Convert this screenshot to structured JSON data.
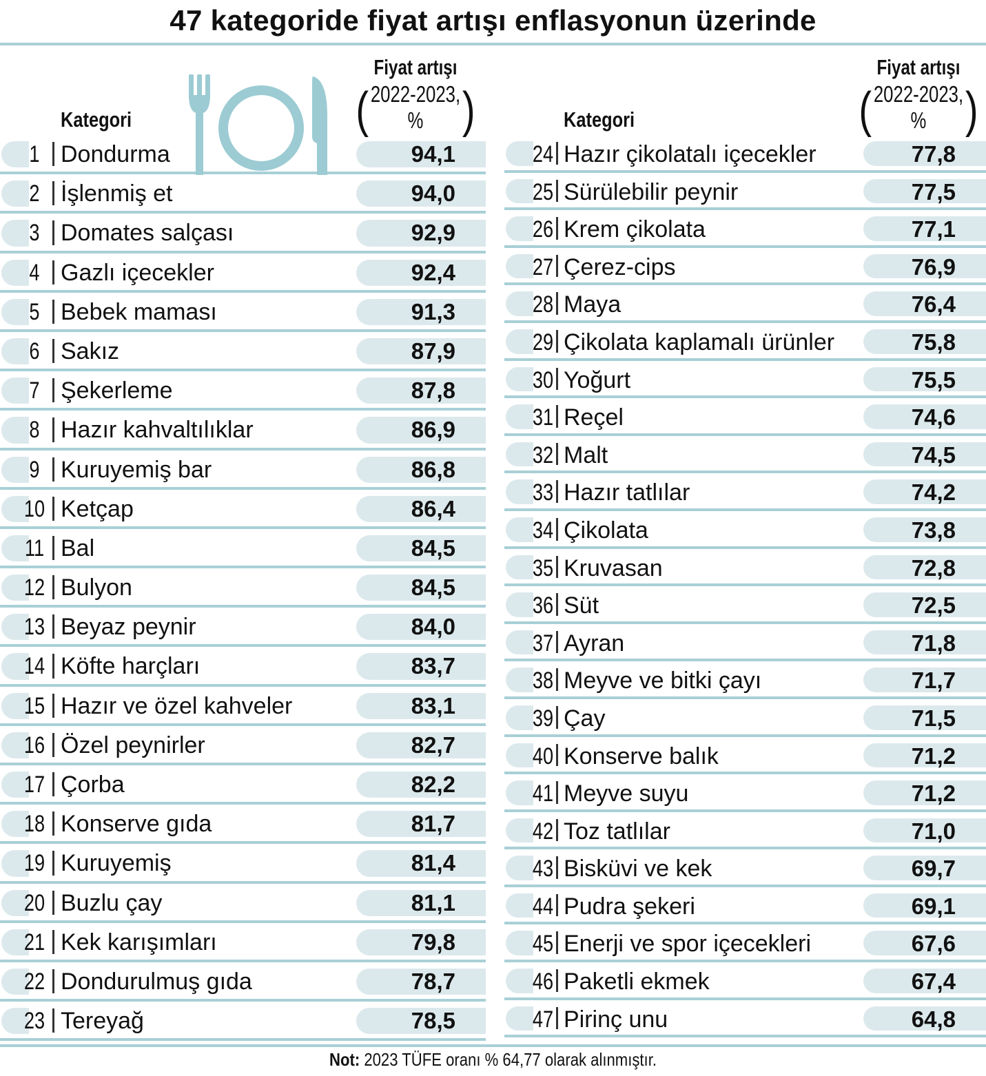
{
  "title": "47 kategoride fiyat artışı enflasyonun üzerinde",
  "header": {
    "category_label": "Kategori",
    "value_label": "Fiyat artışı",
    "value_sub": "2022-2023,",
    "value_unit": "%",
    "paren_open": "(",
    "paren_close": ")"
  },
  "left_rows": [
    {
      "rank": "1",
      "name": "Dondurma",
      "value": "94,1"
    },
    {
      "rank": "2",
      "name": "İşlenmiş et",
      "value": "94,0"
    },
    {
      "rank": "3",
      "name": "Domates salçası",
      "value": "92,9"
    },
    {
      "rank": "4",
      "name": "Gazlı içecekler",
      "value": "92,4"
    },
    {
      "rank": "5",
      "name": "Bebek maması",
      "value": "91,3"
    },
    {
      "rank": "6",
      "name": "Sakız",
      "value": "87,9"
    },
    {
      "rank": "7",
      "name": "Şekerleme",
      "value": "87,8"
    },
    {
      "rank": "8",
      "name": "Hazır kahvaltılıklar",
      "value": "86,9"
    },
    {
      "rank": "9",
      "name": "Kuruyemiş bar",
      "value": "86,8"
    },
    {
      "rank": "10",
      "name": "Ketçap",
      "value": "86,4"
    },
    {
      "rank": "11",
      "name": "Bal",
      "value": "84,5"
    },
    {
      "rank": "12",
      "name": "Bulyon",
      "value": "84,5"
    },
    {
      "rank": "13",
      "name": "Beyaz peynir",
      "value": "84,0"
    },
    {
      "rank": "14",
      "name": "Köfte harçları",
      "value": "83,7"
    },
    {
      "rank": "15",
      "name": "Hazır ve özel kahveler",
      "value": "83,1"
    },
    {
      "rank": "16",
      "name": "Özel peynirler",
      "value": "82,7"
    },
    {
      "rank": "17",
      "name": "Çorba",
      "value": "82,2"
    },
    {
      "rank": "18",
      "name": "Konserve gıda",
      "value": "81,7"
    },
    {
      "rank": "19",
      "name": "Kuruyemiş",
      "value": "81,4"
    },
    {
      "rank": "20",
      "name": "Buzlu çay",
      "value": "81,1"
    },
    {
      "rank": "21",
      "name": "Kek karışımları",
      "value": "79,8"
    },
    {
      "rank": "22",
      "name": "Dondurulmuş gıda",
      "value": "78,7"
    },
    {
      "rank": "23",
      "name": "Tereyağ",
      "value": "78,5"
    }
  ],
  "right_rows": [
    {
      "rank": "24",
      "name": "Hazır çikolatalı içecekler",
      "value": "77,8"
    },
    {
      "rank": "25",
      "name": "Sürülebilir peynir",
      "value": "77,5"
    },
    {
      "rank": "26",
      "name": "Krem çikolata",
      "value": "77,1"
    },
    {
      "rank": "27",
      "name": "Çerez-cips",
      "value": "76,9"
    },
    {
      "rank": "28",
      "name": "Maya",
      "value": "76,4"
    },
    {
      "rank": "29",
      "name": "Çikolata kaplamalı ürünler",
      "value": "75,8"
    },
    {
      "rank": "30",
      "name": "Yoğurt",
      "value": "75,5"
    },
    {
      "rank": "31",
      "name": "Reçel",
      "value": "74,6"
    },
    {
      "rank": "32",
      "name": "Malt",
      "value": "74,5"
    },
    {
      "rank": "33",
      "name": "Hazır tatlılar",
      "value": "74,2"
    },
    {
      "rank": "34",
      "name": "Çikolata",
      "value": "73,8"
    },
    {
      "rank": "35",
      "name": "Kruvasan",
      "value": "72,8"
    },
    {
      "rank": "36",
      "name": "Süt",
      "value": "72,5"
    },
    {
      "rank": "37",
      "name": "Ayran",
      "value": "71,8"
    },
    {
      "rank": "38",
      "name": "Meyve ve bitki çayı",
      "value": "71,7"
    },
    {
      "rank": "39",
      "name": "Çay",
      "value": "71,5"
    },
    {
      "rank": "40",
      "name": "Konserve balık",
      "value": "71,2"
    },
    {
      "rank": "41",
      "name": "Meyve suyu",
      "value": "71,2"
    },
    {
      "rank": "42",
      "name": "Toz tatlılar",
      "value": "71,0"
    },
    {
      "rank": "43",
      "name": "Bisküvi ve kek",
      "value": "69,7"
    },
    {
      "rank": "44",
      "name": "Pudra şekeri",
      "value": "69,1"
    },
    {
      "rank": "45",
      "name": "Enerji ve spor içecekleri",
      "value": "67,6"
    },
    {
      "rank": "46",
      "name": "Paketli ekmek",
      "value": "67,4"
    },
    {
      "rank": "47",
      "name": "Pirinç unu",
      "value": "64,8"
    }
  ],
  "note": {
    "label": "Not:",
    "text": "2023 TÜFE oranı % 64,77 olarak alınmıştır."
  },
  "colors": {
    "accent": "#a8cfd6",
    "pill": "#dce9ec",
    "icon": "#9ccbd3"
  },
  "icon": "fork-plate-knife-icon"
}
